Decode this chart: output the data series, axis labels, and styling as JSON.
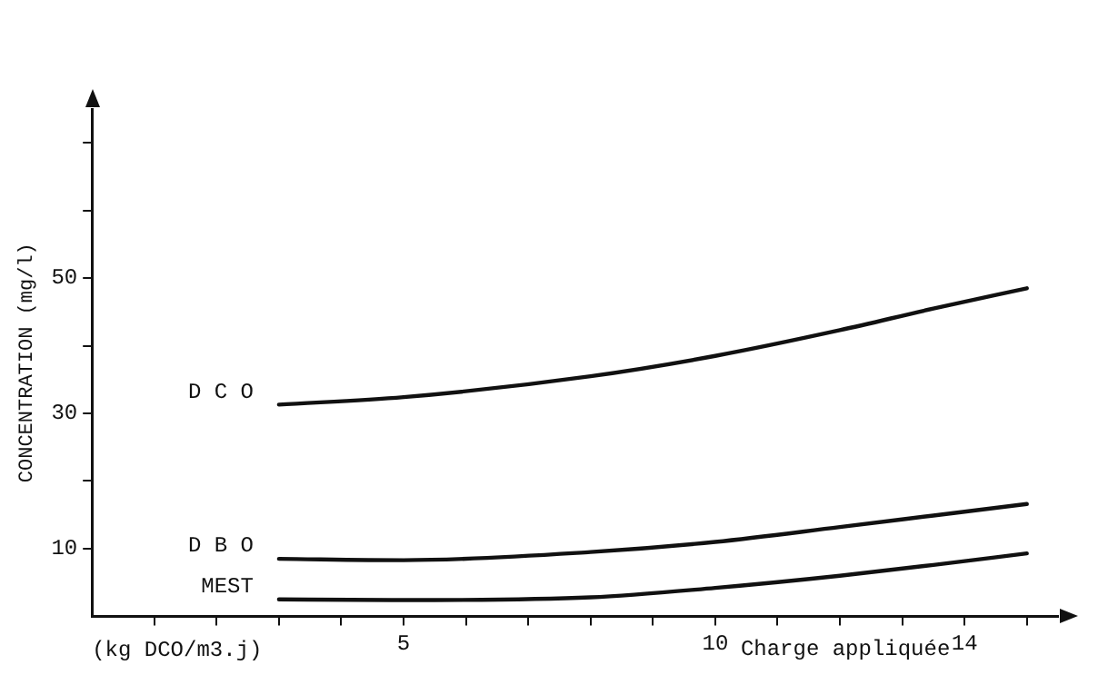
{
  "chart_data": {
    "type": "line",
    "ylabel": "CONCENTRATION (mg/l)",
    "xlabel": "(kg DCO/m3.j)",
    "annotations": [
      "Charge appliquée"
    ],
    "x": [
      3,
      5,
      8,
      10,
      12,
      13.5,
      15
    ],
    "series": [
      {
        "name": "D C O",
        "color": "#111111",
        "values": [
          31.3,
          32.4,
          35.5,
          38.5,
          42.3,
          45.5,
          48.5
        ]
      },
      {
        "name": "D B O",
        "color": "#111111",
        "values": [
          8.5,
          8.3,
          9.5,
          11,
          13.2,
          14.9,
          16.6
        ]
      },
      {
        "name": "MEST",
        "color": "#111111",
        "values": [
          2.5,
          2.4,
          2.8,
          4.2,
          6,
          7.6,
          9.3
        ]
      }
    ],
    "xlim": [
      0,
      15.5
    ],
    "ylim": [
      0,
      75
    ],
    "xticks": [
      {
        "value": 1,
        "label": null
      },
      {
        "value": 2,
        "label": null
      },
      {
        "value": 3,
        "label": null
      },
      {
        "value": 4,
        "label": null
      },
      5,
      {
        "value": 6,
        "label": null
      },
      {
        "value": 7,
        "label": null
      },
      {
        "value": 8,
        "label": null
      },
      {
        "value": 9,
        "label": null
      },
      10,
      {
        "value": 11,
        "label": null
      },
      {
        "value": 12,
        "label": null
      },
      {
        "value": 13,
        "label": null
      },
      14,
      {
        "value": 15,
        "label": null
      }
    ],
    "yticks": [
      10,
      {
        "value": 20,
        "label": null
      },
      30,
      {
        "value": 40,
        "label": null
      },
      50,
      {
        "value": 60,
        "label": null
      },
      {
        "value": 70,
        "label": null
      }
    ],
    "grid": false,
    "legend": false,
    "marker": "none",
    "line_style": "solid"
  }
}
